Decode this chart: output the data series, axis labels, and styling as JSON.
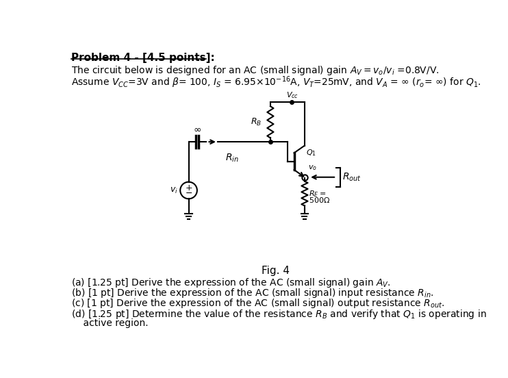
{
  "background_color": "#ffffff",
  "fig_width": 7.42,
  "fig_height": 5.52,
  "dpi": 100,
  "lw": 1.5
}
